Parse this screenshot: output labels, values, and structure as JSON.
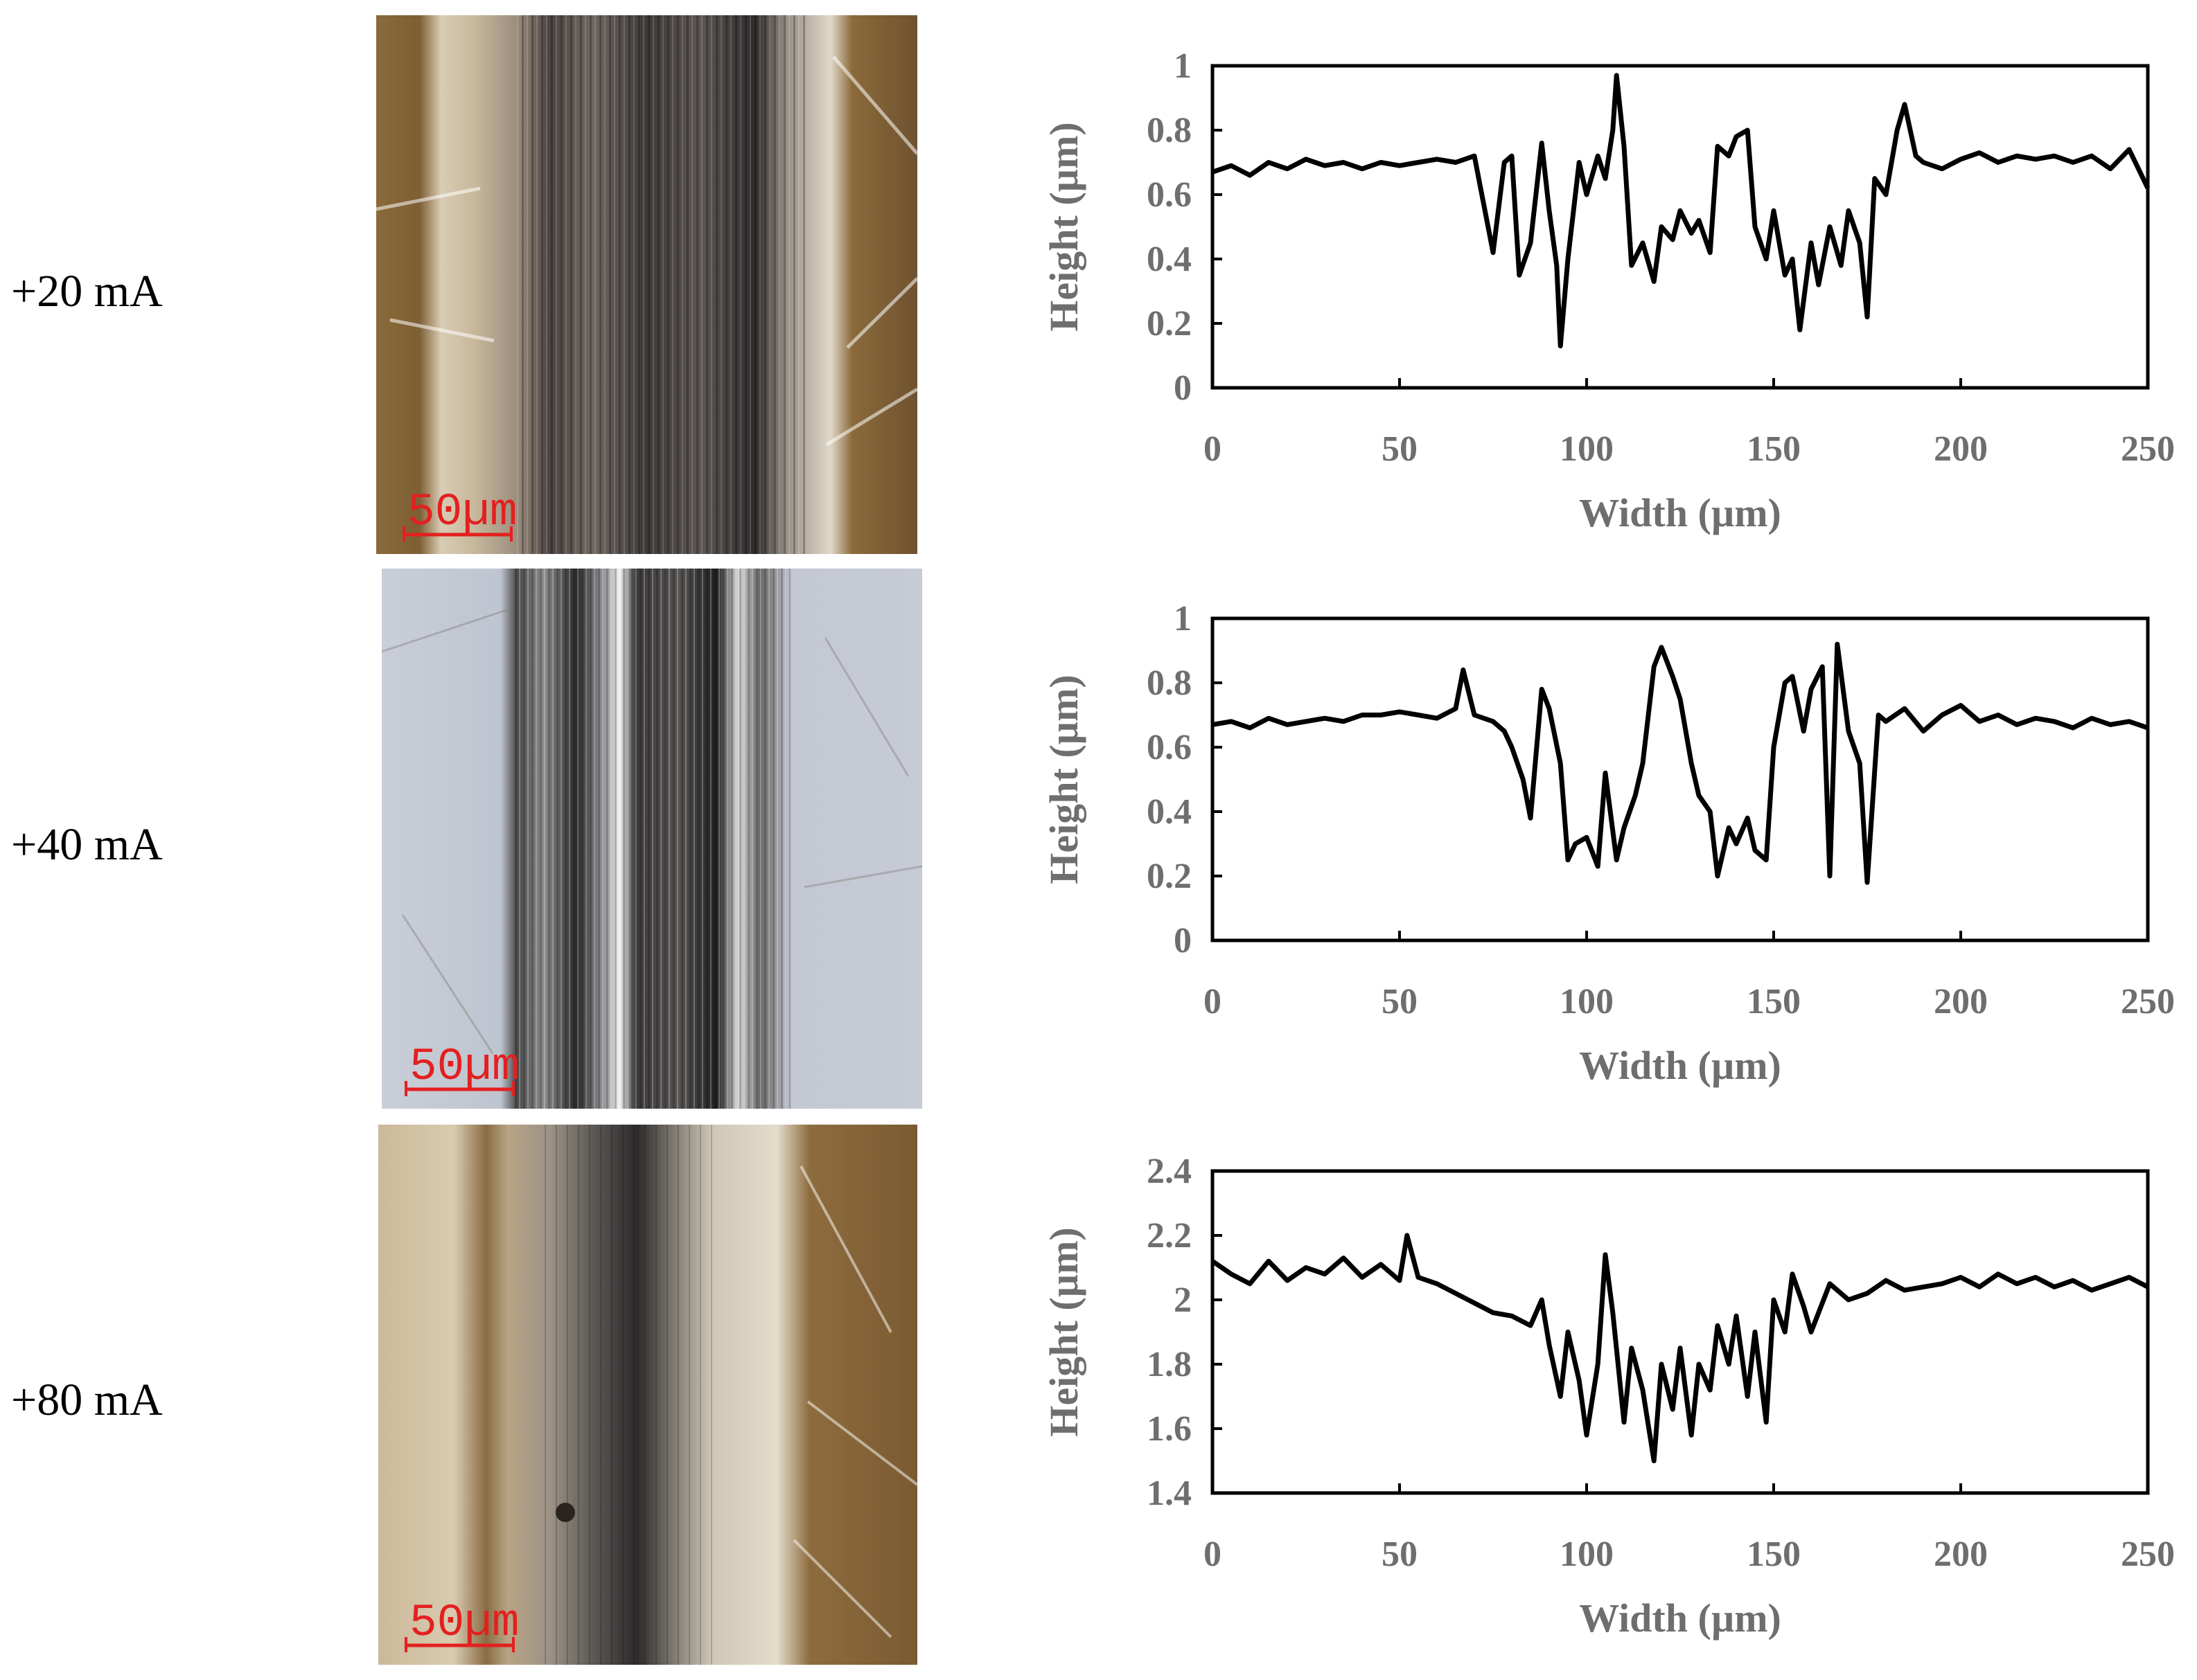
{
  "rows": [
    {
      "label": "+20 mA",
      "micrograph": {
        "scale_bar": "50µm",
        "tone": "brown"
      }
    },
    {
      "label": "+40 mA",
      "micrograph": {
        "scale_bar": "50µm",
        "tone": "blue-gray"
      }
    },
    {
      "label": "+80 mA",
      "micrograph": {
        "scale_bar": "50µm",
        "tone": "light-brown"
      }
    }
  ],
  "colors": {
    "line": "#000000",
    "ticks": "#6e6e6e",
    "scale_bar": "#e32020"
  },
  "chart_data": [
    {
      "type": "line",
      "xlabel": "Width (µm)",
      "ylabel": "Height (µm)",
      "xlim": [
        0,
        250
      ],
      "ylim": [
        0,
        1
      ],
      "xticks": [
        "0",
        "50",
        "100",
        "150",
        "200",
        "250"
      ],
      "yticks": [
        "0",
        "0.2",
        "0.4",
        "0.6",
        "0.8",
        "1"
      ],
      "series": [
        {
          "x": [
            0,
            5,
            10,
            15,
            20,
            25,
            30,
            35,
            40,
            45,
            50,
            55,
            60,
            65,
            70,
            72,
            75,
            78,
            80,
            82,
            85,
            88,
            90,
            92,
            93,
            95,
            98,
            100,
            103,
            105,
            107,
            108,
            110,
            112,
            115,
            118,
            120,
            123,
            125,
            128,
            130,
            133,
            135,
            138,
            140,
            143,
            145,
            148,
            150,
            153,
            155,
            157,
            160,
            162,
            165,
            168,
            170,
            173,
            175,
            177,
            180,
            183,
            185,
            188,
            190,
            195,
            200,
            205,
            210,
            215,
            220,
            225,
            230,
            235,
            240,
            245,
            250
          ],
          "y": [
            0.67,
            0.69,
            0.66,
            0.7,
            0.68,
            0.71,
            0.69,
            0.7,
            0.68,
            0.7,
            0.69,
            0.7,
            0.71,
            0.7,
            0.72,
            0.6,
            0.42,
            0.7,
            0.72,
            0.35,
            0.45,
            0.76,
            0.55,
            0.38,
            0.13,
            0.4,
            0.7,
            0.6,
            0.72,
            0.65,
            0.8,
            0.97,
            0.75,
            0.38,
            0.45,
            0.33,
            0.5,
            0.46,
            0.55,
            0.48,
            0.52,
            0.42,
            0.75,
            0.72,
            0.78,
            0.8,
            0.5,
            0.4,
            0.55,
            0.35,
            0.4,
            0.18,
            0.45,
            0.32,
            0.5,
            0.38,
            0.55,
            0.45,
            0.22,
            0.65,
            0.6,
            0.8,
            0.88,
            0.72,
            0.7,
            0.68,
            0.71,
            0.73,
            0.7,
            0.72,
            0.71,
            0.72,
            0.7,
            0.72,
            0.68,
            0.74,
            0.62
          ]
        }
      ]
    },
    {
      "type": "line",
      "xlabel": "Width (µm)",
      "ylabel": "Height (µm)",
      "xlim": [
        0,
        250
      ],
      "ylim": [
        0,
        1
      ],
      "xticks": [
        "0",
        "50",
        "100",
        "150",
        "200",
        "250"
      ],
      "yticks": [
        "0",
        "0.2",
        "0.4",
        "0.6",
        "0.8",
        "1"
      ],
      "series": [
        {
          "x": [
            0,
            5,
            10,
            15,
            20,
            25,
            30,
            35,
            40,
            45,
            50,
            55,
            60,
            65,
            67,
            70,
            75,
            78,
            80,
            83,
            85,
            88,
            90,
            93,
            95,
            97,
            100,
            103,
            105,
            108,
            110,
            113,
            115,
            118,
            120,
            123,
            125,
            128,
            130,
            133,
            135,
            138,
            140,
            143,
            145,
            148,
            150,
            153,
            155,
            158,
            160,
            163,
            165,
            167,
            170,
            173,
            175,
            178,
            180,
            185,
            190,
            195,
            200,
            205,
            210,
            215,
            220,
            225,
            230,
            235,
            240,
            245,
            250
          ],
          "y": [
            0.67,
            0.68,
            0.66,
            0.69,
            0.67,
            0.68,
            0.69,
            0.68,
            0.7,
            0.7,
            0.71,
            0.7,
            0.69,
            0.72,
            0.84,
            0.7,
            0.68,
            0.65,
            0.6,
            0.5,
            0.38,
            0.78,
            0.72,
            0.55,
            0.25,
            0.3,
            0.32,
            0.23,
            0.52,
            0.25,
            0.35,
            0.45,
            0.55,
            0.85,
            0.91,
            0.82,
            0.75,
            0.55,
            0.45,
            0.4,
            0.2,
            0.35,
            0.3,
            0.38,
            0.28,
            0.25,
            0.6,
            0.8,
            0.82,
            0.65,
            0.78,
            0.85,
            0.2,
            0.92,
            0.65,
            0.55,
            0.18,
            0.7,
            0.68,
            0.72,
            0.65,
            0.7,
            0.73,
            0.68,
            0.7,
            0.67,
            0.69,
            0.68,
            0.66,
            0.69,
            0.67,
            0.68,
            0.66
          ]
        }
      ]
    },
    {
      "type": "line",
      "xlabel": "Width (µm)",
      "ylabel": "Height (µm)",
      "xlim": [
        0,
        250
      ],
      "ylim": [
        1.4,
        2.4
      ],
      "xticks": [
        "0",
        "50",
        "100",
        "150",
        "200",
        "250"
      ],
      "yticks": [
        "1.4",
        "1.6",
        "1.8",
        "2",
        "2.2",
        "2.4"
      ],
      "series": [
        {
          "x": [
            0,
            5,
            10,
            15,
            20,
            25,
            30,
            35,
            40,
            45,
            50,
            52,
            55,
            60,
            65,
            70,
            75,
            80,
            85,
            88,
            90,
            93,
            95,
            98,
            100,
            103,
            105,
            107,
            110,
            112,
            115,
            118,
            120,
            123,
            125,
            128,
            130,
            133,
            135,
            138,
            140,
            143,
            145,
            148,
            150,
            153,
            155,
            158,
            160,
            165,
            170,
            175,
            180,
            185,
            190,
            195,
            200,
            205,
            210,
            215,
            220,
            225,
            230,
            235,
            240,
            245,
            250
          ],
          "y": [
            2.12,
            2.08,
            2.05,
            2.12,
            2.06,
            2.1,
            2.08,
            2.13,
            2.07,
            2.11,
            2.06,
            2.2,
            2.07,
            2.05,
            2.02,
            1.99,
            1.96,
            1.95,
            1.92,
            2.0,
            1.86,
            1.7,
            1.9,
            1.75,
            1.58,
            1.8,
            2.14,
            1.96,
            1.62,
            1.85,
            1.72,
            1.5,
            1.8,
            1.66,
            1.85,
            1.58,
            1.8,
            1.72,
            1.92,
            1.8,
            1.95,
            1.7,
            1.9,
            1.62,
            2.0,
            1.9,
            2.08,
            1.98,
            1.9,
            2.05,
            2.0,
            2.02,
            2.06,
            2.03,
            2.04,
            2.05,
            2.07,
            2.04,
            2.08,
            2.05,
            2.07,
            2.04,
            2.06,
            2.03,
            2.05,
            2.07,
            2.04
          ]
        }
      ]
    }
  ]
}
